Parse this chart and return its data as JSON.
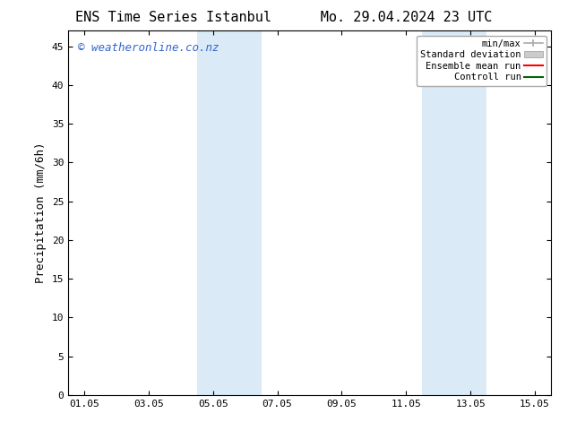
{
  "title_left": "ENS Time Series Istanbul",
  "title_right": "Mo. 29.04.2024 23 UTC",
  "ylabel": "Precipitation (mm/6h)",
  "xlabel": "",
  "background_color": "#ffffff",
  "plot_bg_color": "#ffffff",
  "watermark": "© weatheronline.co.nz",
  "watermark_color": "#3366cc",
  "ylim": [
    0,
    47
  ],
  "yticks": [
    0,
    5,
    10,
    15,
    20,
    25,
    30,
    35,
    40,
    45
  ],
  "xtick_labels": [
    "01.05",
    "03.05",
    "05.05",
    "07.05",
    "09.05",
    "11.05",
    "13.05",
    "15.05"
  ],
  "xtick_positions": [
    0,
    2,
    4,
    6,
    8,
    10,
    12,
    14
  ],
  "xlim": [
    -0.5,
    14.5
  ],
  "shaded_bands": [
    {
      "xmin": 3.5,
      "xmax": 5.5,
      "color": "#daeaf7"
    },
    {
      "xmin": 10.5,
      "xmax": 12.5,
      "color": "#daeaf7"
    }
  ],
  "legend_entries": [
    {
      "label": "min/max",
      "color": "#aaaaaa",
      "linewidth": 1.2
    },
    {
      "label": "Standard deviation",
      "color": "#cccccc",
      "linewidth": 6
    },
    {
      "label": "Ensemble mean run",
      "color": "#ff0000",
      "linewidth": 1.5
    },
    {
      "label": "Controll run",
      "color": "#006600",
      "linewidth": 1.5
    }
  ],
  "title_fontsize": 11,
  "axis_fontsize": 9,
  "tick_fontsize": 8,
  "watermark_fontsize": 9,
  "legend_fontsize": 7.5
}
